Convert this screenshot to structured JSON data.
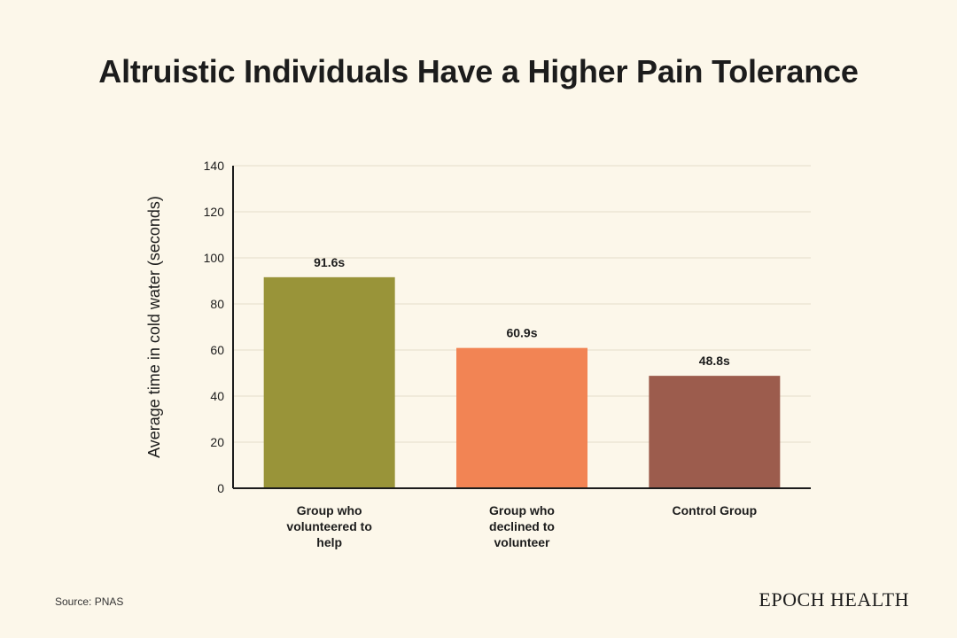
{
  "title": "Altruistic Individuals Have a Higher Pain Tolerance",
  "source": "Source: PNAS",
  "brand": "EPOCH HEALTH",
  "chart_data": {
    "type": "bar",
    "title": "Altruistic Individuals Have a Higher Pain Tolerance",
    "xlabel": "",
    "ylabel": "Average time in cold water (seconds)",
    "ylim": [
      0,
      140
    ],
    "yticks": [
      0,
      20,
      40,
      60,
      80,
      100,
      120,
      140
    ],
    "grid": true,
    "categories": [
      [
        "Group who",
        "volunteered to",
        "help"
      ],
      [
        "Group who",
        "declined to",
        "volunteer"
      ],
      [
        "Control Group"
      ]
    ],
    "values": [
      91.6,
      60.9,
      48.8
    ],
    "value_labels": [
      "91.6s",
      "60.9s",
      "48.8s"
    ],
    "colors": [
      "#999439",
      "#f28454",
      "#9c5c4d"
    ]
  }
}
